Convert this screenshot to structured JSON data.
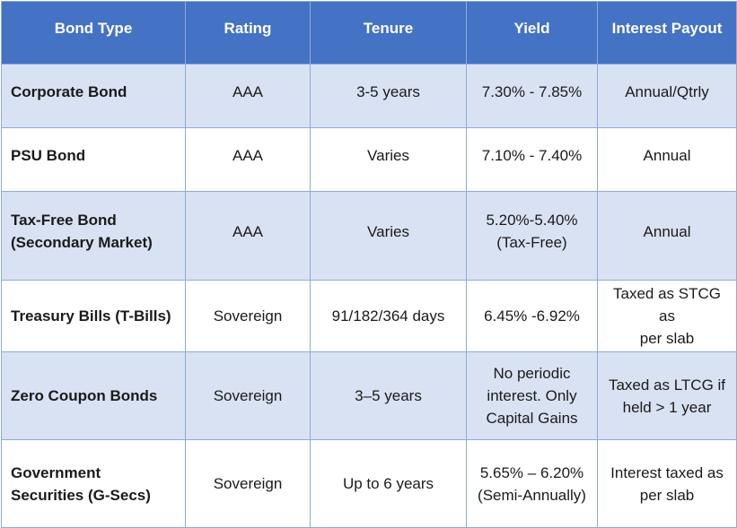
{
  "headers": [
    "Bond Type",
    "Rating",
    "Tenure",
    "Yield",
    "Interest Payout"
  ],
  "rows": [
    {
      "type": [
        "Corporate Bond"
      ],
      "rating": "AAA",
      "tenure": "3-5 years",
      "yield": [
        "7.30% - 7.85%"
      ],
      "payout": [
        "Annual/Qtrly"
      ]
    },
    {
      "type": [
        "PSU Bond"
      ],
      "rating": "AAA",
      "tenure": "Varies",
      "yield": [
        "7.10% - 7.40%"
      ],
      "payout": [
        "Annual"
      ]
    },
    {
      "type": [
        "Tax-Free Bond",
        "(Secondary Market)"
      ],
      "rating": "AAA",
      "tenure": "Varies",
      "yield": [
        "5.20%-5.40%",
        "(Tax-Free)"
      ],
      "payout": [
        "Annual"
      ]
    },
    {
      "type": [
        "Treasury Bills (T-Bills)"
      ],
      "rating": "Sovereign",
      "tenure": "91/182/364 days",
      "yield": [
        "6.45% -6.92%"
      ],
      "payout": [
        "Taxed as STCG as",
        "per slab"
      ]
    },
    {
      "type": [
        "Zero Coupon Bonds"
      ],
      "rating": "Sovereign",
      "tenure": "3–5 years",
      "yield": [
        "No periodic",
        "interest. Only",
        "Capital Gains"
      ],
      "payout": [
        "Taxed as LTCG if",
        "held > 1 year"
      ]
    },
    {
      "type": [
        "Government",
        "Securities (G-Secs)"
      ],
      "rating": "Sovereign",
      "tenure": "Up to 6 years",
      "yield": [
        "5.65% – 6.20%",
        "(Semi-Annually)"
      ],
      "payout": [
        "Interest taxed as",
        "per slab"
      ]
    }
  ],
  "colors": {
    "header_bg": "#4472c4",
    "header_text": "#ffffff",
    "row_shade": "#d9e2f3",
    "row_plain": "#ffffff",
    "border": "#8eaadb"
  }
}
